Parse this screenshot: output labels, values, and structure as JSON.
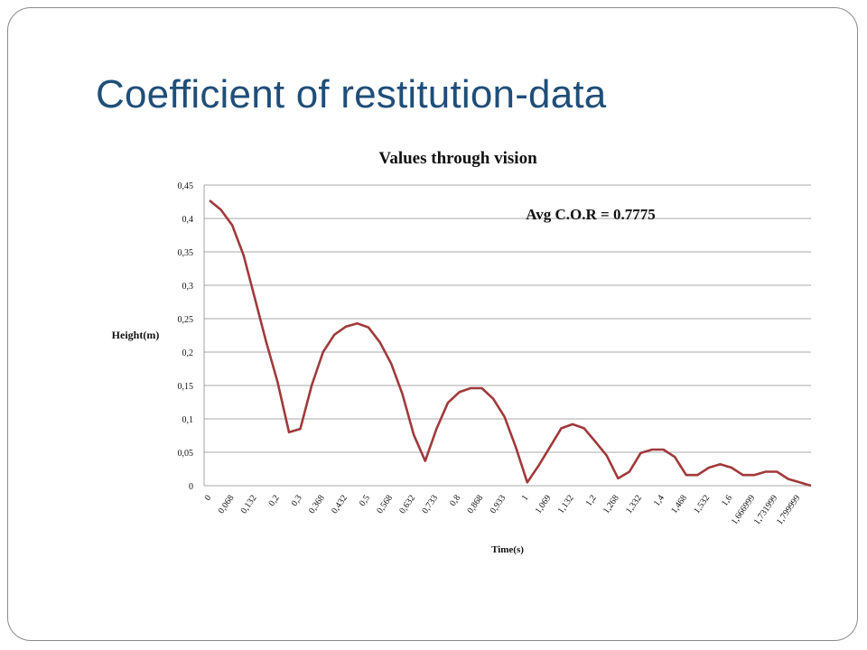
{
  "slide": {
    "title": "Coefficient of restitution-data"
  },
  "colors": {
    "title": "#1f4e79",
    "line": "#a0393a",
    "grid": "#8c8c8c",
    "frame": "#8a8a8a"
  },
  "chart_data": {
    "type": "line",
    "title": "Values through vision",
    "xlabel": "Time(s)",
    "ylabel": "Height(m)",
    "annotation": "Avg C.O.R = 0.7775",
    "ylim": [
      0,
      0.45
    ],
    "yticks": [
      "0",
      "0,05",
      "0,1",
      "0,15",
      "0,2",
      "0,25",
      "0,3",
      "0,35",
      "0,4",
      "0,45"
    ],
    "ytick_values": [
      0,
      0.05,
      0.1,
      0.15,
      0.2,
      0.25,
      0.3,
      0.35,
      0.4,
      0.45
    ],
    "grid": true,
    "legend": "none",
    "x_tick_labels": [
      "0",
      "0,068",
      "0,132",
      "0,2",
      "0,3",
      "0,368",
      "0,432",
      "0,5",
      "0,568",
      "0,632",
      "0,733",
      "0,8",
      "0,868",
      "0,933",
      "1",
      "1,069",
      "1,132",
      "1,2",
      "1,268",
      "1,332",
      "1,4",
      "1,468",
      "1,532",
      "1,6",
      "1,666999",
      "1,731999",
      "1,799999"
    ],
    "series": [
      {
        "values": [
          0.427,
          0.413,
          0.39,
          0.345,
          0.28,
          0.215,
          0.155,
          0.08,
          0.085,
          0.15,
          0.2,
          0.226,
          0.238,
          0.243,
          0.237,
          0.215,
          0.183,
          0.137,
          0.076,
          0.037,
          0.085,
          0.124,
          0.14,
          0.146,
          0.146,
          0.13,
          0.103,
          0.057,
          0.005,
          0.03,
          0.058,
          0.086,
          0.092,
          0.086,
          0.066,
          0.045,
          0.011,
          0.021,
          0.049,
          0.054,
          0.054,
          0.043,
          0.016,
          0.016,
          0.027,
          0.032,
          0.027,
          0.016,
          0.016,
          0.021,
          0.021,
          0.01,
          0.005,
          0
        ]
      }
    ]
  }
}
